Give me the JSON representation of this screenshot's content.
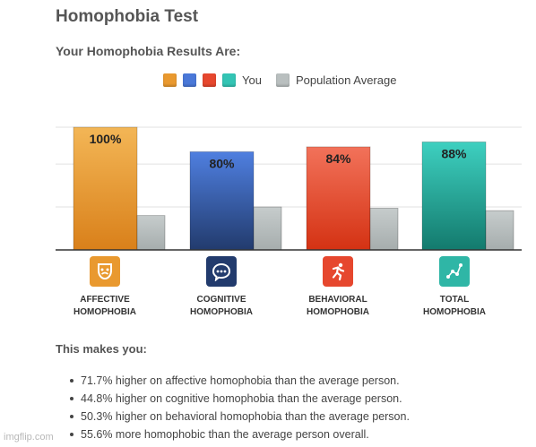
{
  "page": {
    "title": "Homophobia Test",
    "subtitle": "Your Homophobia Results Are:"
  },
  "legend": {
    "you_label": "You",
    "population_label": "Population Average",
    "you_colors": [
      "#e9992f",
      "#4a78d8",
      "#e6472e",
      "#33c4b4"
    ],
    "population_color": "#b9bfbf"
  },
  "colors": {
    "affective_top": "#f3b656",
    "affective_bottom": "#d9801a",
    "cognitive_top": "#4f7fe0",
    "cognitive_bottom": "#223b6d",
    "behavioral_top": "#f2725a",
    "behavioral_bottom": "#d43213",
    "total_top": "#3ed0c0",
    "total_bottom": "#137a6d",
    "population_top": "#c6cccc",
    "population_bottom": "#a6adad",
    "grid": "#e2e2e2",
    "axis": "#333333"
  },
  "chart_data": {
    "type": "bar",
    "categories": [
      "AFFECTIVE HOMOPHOBIA",
      "COGNITIVE HOMOPHOBIA",
      "BEHAVIORAL HOMOPHOBIA",
      "TOTAL HOMOPHOBIA"
    ],
    "series": [
      {
        "name": "You",
        "values": [
          100,
          80,
          84,
          88
        ],
        "labels": [
          "100%",
          "80%",
          "84%",
          "88%"
        ]
      },
      {
        "name": "Population Average",
        "values": [
          28,
          35,
          34,
          32
        ]
      }
    ],
    "ylim": [
      0,
      100
    ],
    "grid": true,
    "legend_position": "top"
  },
  "categories": [
    {
      "label": "AFFECTIVE\nHOMOPHOBIA",
      "icon": "drama-mask-icon",
      "color": "#e9992f"
    },
    {
      "label": "COGNITIVE\nHOMOPHOBIA",
      "icon": "thought-bubble-icon",
      "color": "#223b6d"
    },
    {
      "label": "BEHAVIORAL\nHOMOPHOBIA",
      "icon": "running-person-icon",
      "color": "#e6472e"
    },
    {
      "label": "TOTAL\nHOMOPHOBIA",
      "icon": "constellation-icon",
      "color": "#2fb6a6"
    }
  ],
  "summary": {
    "heading": "This makes you:",
    "items": [
      "71.7% higher on affective homophobia than the average person.",
      "44.8% higher on cognitive homophobia than the average person.",
      "50.3% higher on behavioral homophobia than the average person.",
      "55.6% more homophobic than the average person overall."
    ]
  },
  "watermark": "imgflip.com"
}
